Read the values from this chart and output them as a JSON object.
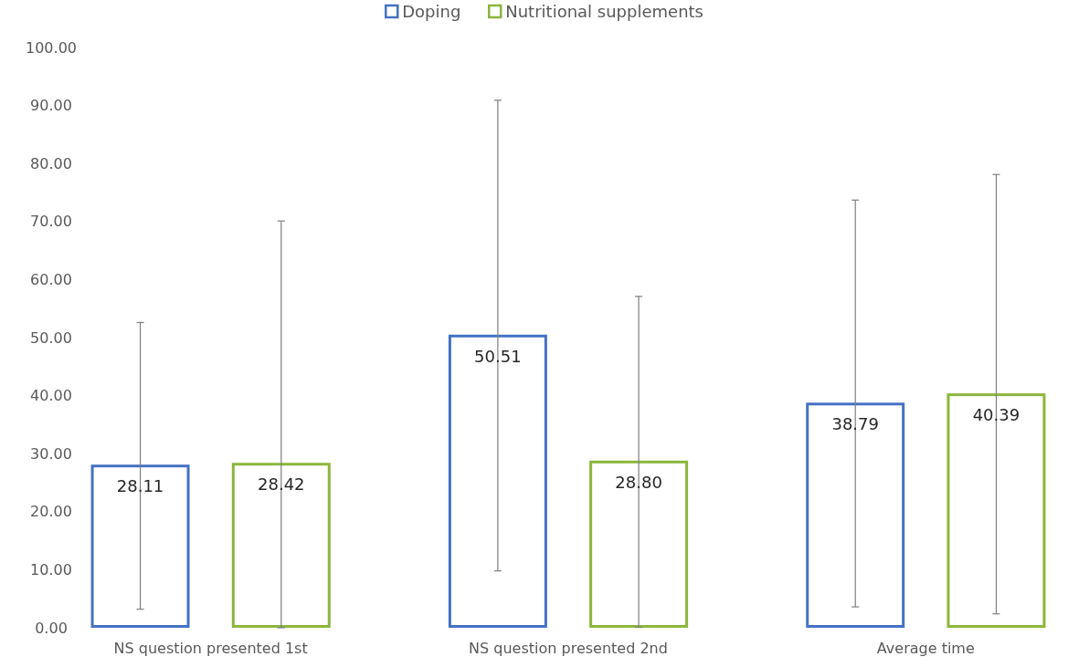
{
  "chart_data": {
    "type": "bar",
    "categories": [
      "NS question presented 1st",
      "NS question presented 2nd",
      "Average time"
    ],
    "series": [
      {
        "name": "Doping",
        "color": "#4472c4",
        "values": [
          28.11,
          50.51,
          38.79
        ],
        "value_labels": [
          "28.11",
          "50.51",
          "38.79"
        ],
        "errors": [
          [
            3.2,
            52.6
          ],
          [
            9.8,
            90.9
          ],
          [
            3.6,
            73.7
          ]
        ]
      },
      {
        "name": "Nutritional supplements",
        "color": "#8cb63c",
        "values": [
          28.42,
          28.8,
          40.39
        ],
        "value_labels": [
          "28.42",
          "28.80",
          "40.39"
        ],
        "errors": [
          [
            0,
            70.1
          ],
          [
            0.1,
            57.1
          ],
          [
            2.4,
            78.1
          ]
        ]
      }
    ],
    "legend": "top",
    "grid": false,
    "ylim": [
      0,
      100
    ],
    "yticks": [
      {
        "value": 0,
        "label": "0.00"
      },
      {
        "value": 10,
        "label": "10.00"
      },
      {
        "value": 20,
        "label": "20.00"
      },
      {
        "value": 30,
        "label": "30.00"
      },
      {
        "value": 40,
        "label": "40.00"
      },
      {
        "value": 50,
        "label": "50.00"
      },
      {
        "value": 60,
        "label": "60.00"
      },
      {
        "value": 70,
        "label": "70.00"
      },
      {
        "value": 80,
        "label": "80.00"
      },
      {
        "value": 90,
        "label": "90.00"
      },
      {
        "value": 100,
        "label": "100.00"
      }
    ]
  }
}
